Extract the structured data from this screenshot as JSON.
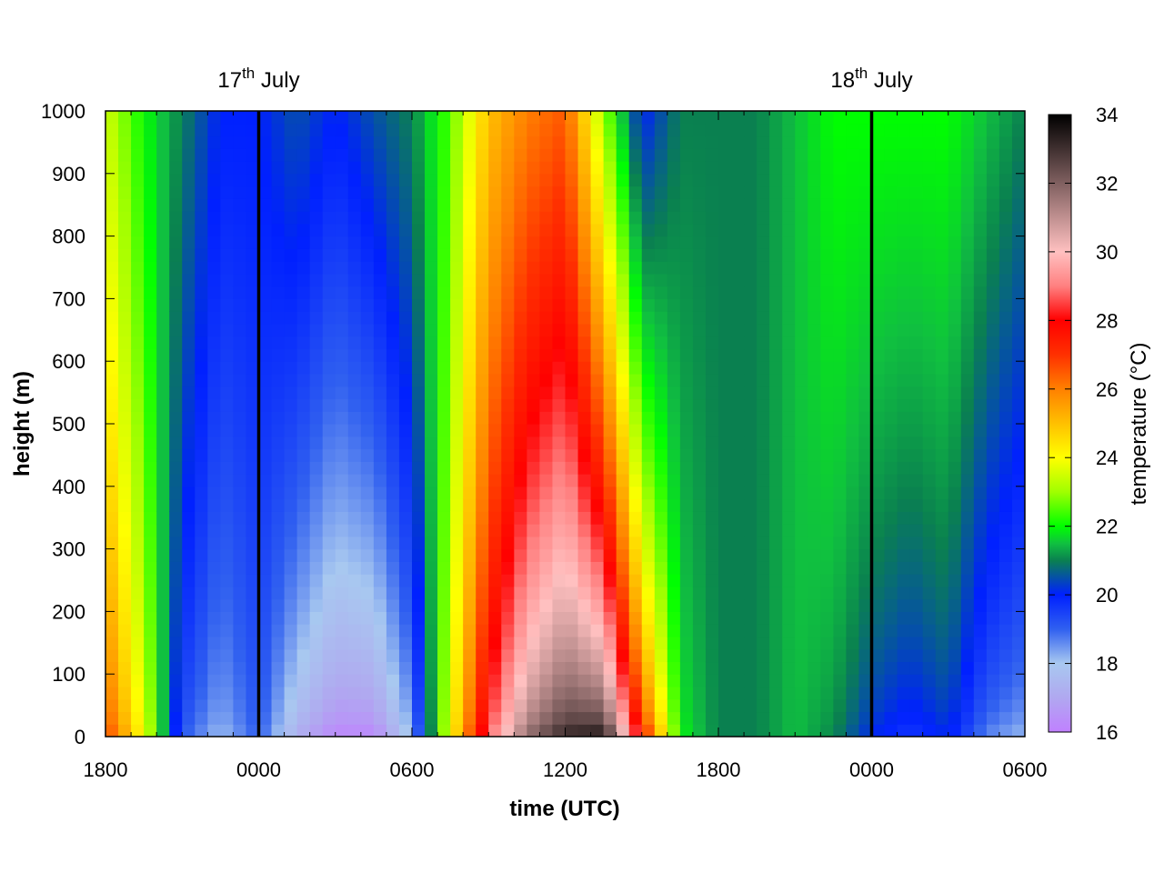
{
  "chart_data": {
    "type": "heatmap",
    "xlabel": "time (UTC)",
    "ylabel": "height (m)",
    "colorbar_label": "temperature (°C)",
    "x_tick_labels": [
      "1800",
      "0000",
      "0600",
      "1200",
      "1800",
      "0000",
      "0600"
    ],
    "x_tick_hours": [
      0,
      6,
      12,
      18,
      24,
      30,
      36
    ],
    "xlim_hours": [
      0,
      36
    ],
    "y_ticks": [
      0,
      100,
      200,
      300,
      400,
      500,
      600,
      700,
      800,
      900,
      1000
    ],
    "ylim": [
      0,
      1000
    ],
    "colorbar_ticks": [
      16,
      18,
      20,
      22,
      24,
      26,
      28,
      30,
      32,
      34
    ],
    "colorbar_range": [
      16,
      34
    ],
    "colormap": [
      [
        16,
        "#c080ff"
      ],
      [
        17,
        "#b0a8f0"
      ],
      [
        18,
        "#a8c8f0"
      ],
      [
        19,
        "#3060f0"
      ],
      [
        20,
        "#0020ff"
      ],
      [
        21,
        "#0a8050"
      ],
      [
        21.5,
        "#10c040"
      ],
      [
        22,
        "#00ff00"
      ],
      [
        23,
        "#a0ff00"
      ],
      [
        24,
        "#ffff00"
      ],
      [
        25,
        "#ffc000"
      ],
      [
        26,
        "#ff8000"
      ],
      [
        27,
        "#ff3000"
      ],
      [
        28,
        "#ff0000"
      ],
      [
        29,
        "#ff8080"
      ],
      [
        30,
        "#ffc0c0"
      ],
      [
        31,
        "#c09090"
      ],
      [
        32,
        "#806060"
      ],
      [
        33,
        "#403030"
      ],
      [
        34,
        "#000000"
      ]
    ],
    "event_lines": [
      {
        "x_hours": 6,
        "label_base": "17",
        "label_sup": "th",
        "label_rest": " July"
      },
      {
        "x_hours": 30,
        "label_base": "18",
        "label_sup": "th",
        "label_rest": " July"
      }
    ],
    "surface_profile_hours": [
      0,
      1.5,
      3,
      4.5,
      6,
      7.5,
      9,
      10.5,
      12,
      13.5,
      15,
      16.5,
      18,
      19.5,
      21,
      22.5,
      24,
      25.5,
      27,
      28.5,
      30,
      31.5,
      33,
      34.5,
      36
    ],
    "surface_temperature_c": [
      27,
      24,
      19,
      18,
      19,
      17,
      16,
      16,
      18,
      24,
      29,
      32,
      33.5,
      34,
      28,
      22,
      21,
      21,
      21.5,
      21,
      20,
      19.5,
      20,
      18.5,
      18
    ],
    "top_profile_hours": [
      0,
      1.5,
      3,
      4.5,
      6,
      7.5,
      9,
      10.5,
      12,
      13.5,
      15,
      16.5,
      18,
      19.5,
      21,
      22.5,
      24,
      25.5,
      27,
      28.5,
      30,
      31.5,
      33,
      34.5,
      36
    ],
    "top_temperature_c": [
      23.5,
      22,
      21,
      20,
      20,
      20.5,
      20,
      20.5,
      21,
      22.5,
      25,
      26,
      26.5,
      23,
      20,
      21,
      21,
      21,
      21.5,
      22,
      22,
      22,
      22,
      21.5,
      21
    ]
  }
}
